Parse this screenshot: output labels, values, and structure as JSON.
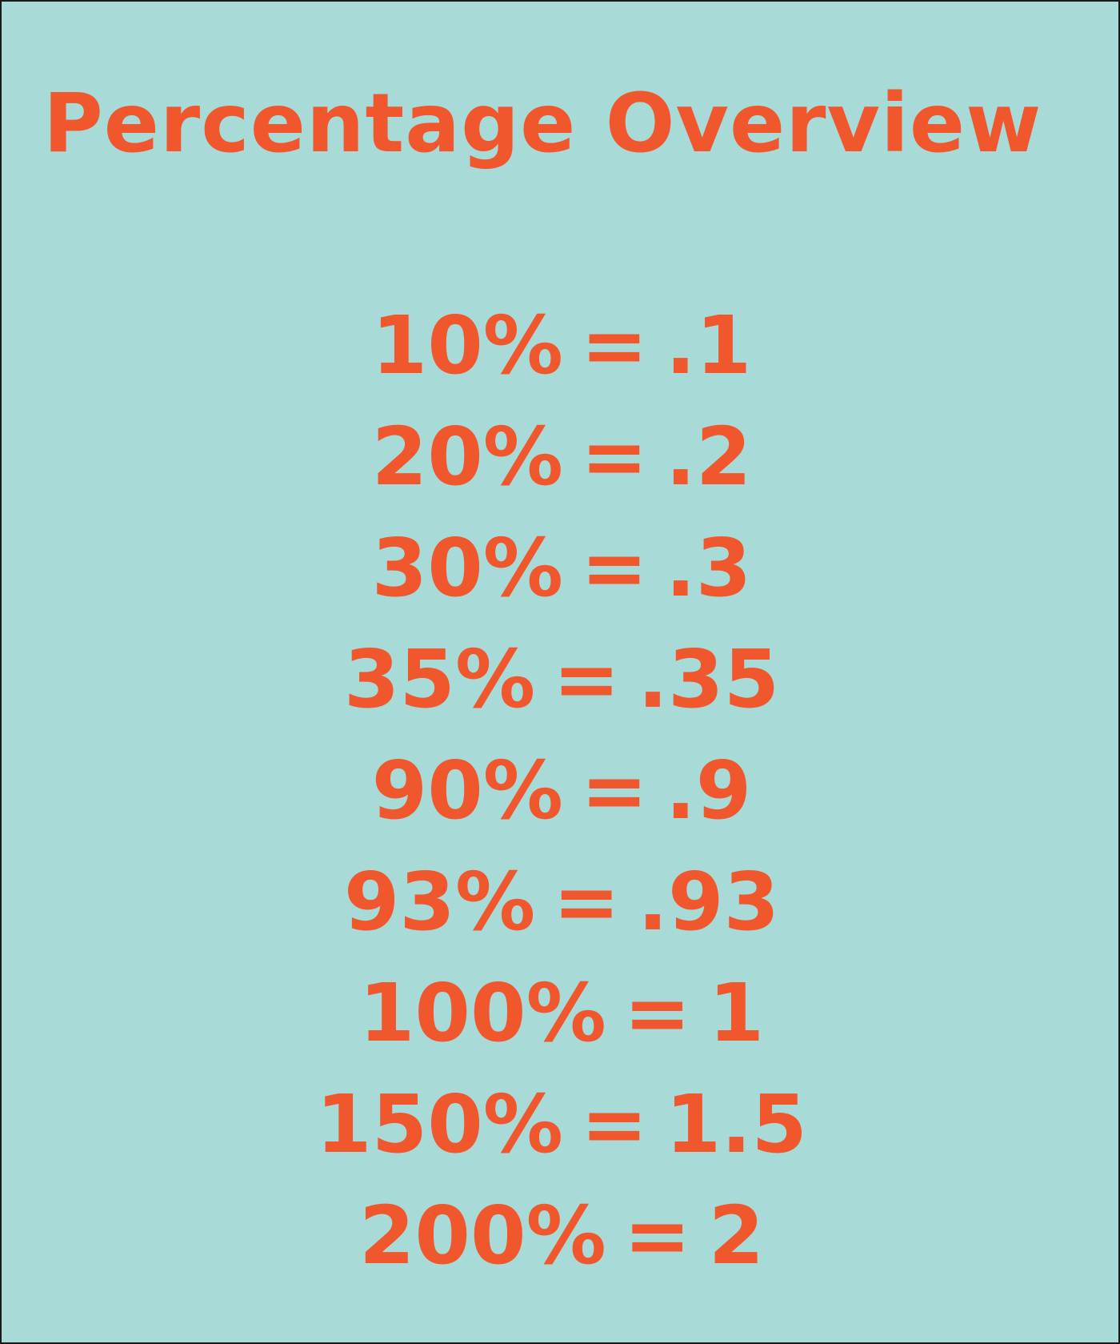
{
  "page": {
    "title": "Percentage Overview",
    "colors": {
      "background": "#a8dbd8",
      "text": "#f0572d",
      "border": "#1a1a1a"
    }
  },
  "conversions": [
    {
      "percent": "10%",
      "equals": "=",
      "decimal": ".1"
    },
    {
      "percent": "20%",
      "equals": "=",
      "decimal": ".2"
    },
    {
      "percent": "30%",
      "equals": "=",
      "decimal": ".3"
    },
    {
      "percent": "35%",
      "equals": "=",
      "decimal": ".35"
    },
    {
      "percent": "90%",
      "equals": "=",
      "decimal": ".9"
    },
    {
      "percent": "93%",
      "equals": "=",
      "decimal": ".93"
    },
    {
      "percent": "100%",
      "equals": "=",
      "decimal": "1"
    },
    {
      "percent": "150%",
      "equals": "=",
      "decimal": "1.5"
    },
    {
      "percent": "200%",
      "equals": "=",
      "decimal": "2"
    }
  ]
}
